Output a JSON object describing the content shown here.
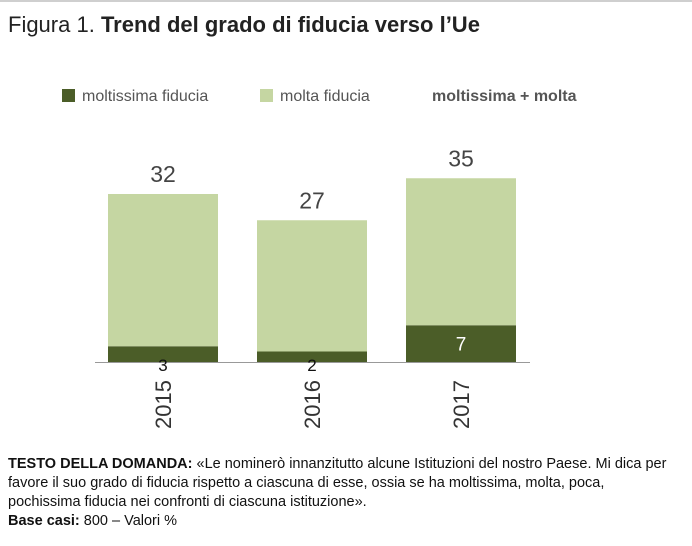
{
  "title": {
    "label": "Figura 1.",
    "main": "Trend del grado di fiducia verso l’Ue"
  },
  "legend": {
    "items": [
      {
        "label": "moltissima fiducia",
        "color": "#4b5d28"
      },
      {
        "label": "molta fiducia",
        "color": "#c5d6a2"
      }
    ],
    "total_label": "moltissima + molta"
  },
  "chart_data": {
    "type": "bar",
    "stacked": true,
    "categories": [
      "2015",
      "2016",
      "2017"
    ],
    "series": [
      {
        "name": "moltissima fiducia",
        "values": [
          3,
          2,
          7
        ],
        "color": "#4b5d28"
      },
      {
        "name": "molta fiducia",
        "values": [
          29,
          25,
          28
        ],
        "color": "#c5d6a2"
      }
    ],
    "totals": [
      32,
      27,
      35
    ],
    "total_series_name": "moltissima + molta",
    "xlabel": "",
    "ylabel": "",
    "ylim": [
      0,
      40
    ],
    "grid": false,
    "legend_position": "top"
  },
  "footnote": {
    "question_label": "TESTO DELLA DOMANDA:",
    "question_text": "«Le nominerò innanzitutto alcune Istituzioni del nostro Paese. Mi dica per favore il suo grado di fiducia rispetto a ciascuna di esse, ossia se ha moltissima, molta, poca, pochissima fiducia nei confronti di ciascuna istituzione».",
    "base_label": "Base casi:",
    "base_text": "800 – Valori %"
  }
}
